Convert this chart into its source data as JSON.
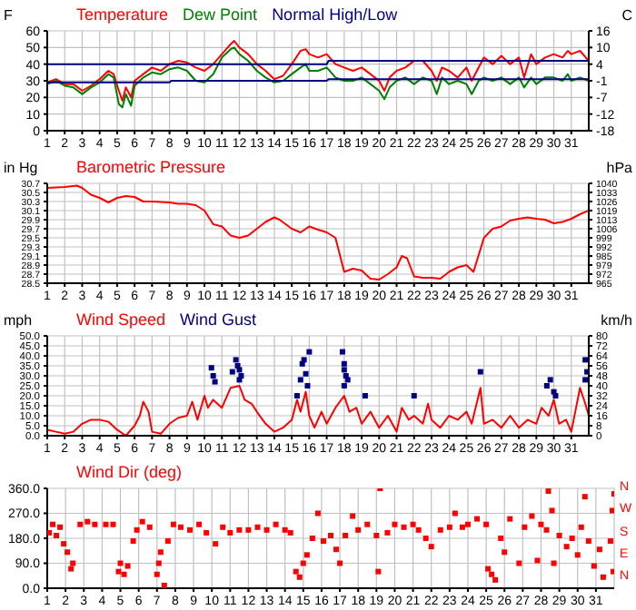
{
  "chart_data": [
    {
      "type": "line",
      "ylabel": "F",
      "y2label": "C",
      "legend": "top left",
      "grid": true,
      "line_style": "solid",
      "xlim": [
        1,
        32
      ],
      "xticks": [
        1,
        2,
        3,
        4,
        5,
        6,
        7,
        8,
        9,
        10,
        11,
        12,
        13,
        14,
        15,
        16,
        17,
        18,
        19,
        20,
        21,
        22,
        23,
        24,
        25,
        26,
        27,
        28,
        29,
        30,
        31
      ],
      "ylim": [
        0,
        60
      ],
      "yticks": [
        0,
        10,
        20,
        30,
        40,
        50,
        60
      ],
      "y2lim": [
        -17.78,
        15.56
      ],
      "y2ticks": [
        {
          "value": -17.78,
          "label": "-18"
        },
        {
          "value": -12.22,
          "label": "-12"
        },
        {
          "value": -6.67,
          "label": "-7"
        },
        {
          "value": -1.11,
          "label": "-1"
        },
        {
          "value": 4.44,
          "label": "4"
        },
        10,
        {
          "value": 15.56,
          "label": "16"
        }
      ],
      "series": [
        {
          "name": "Temperature",
          "color": "#ff0000",
          "x": [
            1,
            1.5,
            2,
            2.5,
            3,
            3.5,
            4,
            4.5,
            4.8,
            5.1,
            5.3,
            5.5,
            5.8,
            6,
            6.5,
            7,
            7.5,
            8,
            8.5,
            9,
            9.5,
            10,
            10.5,
            11,
            11.5,
            11.7,
            12,
            12.5,
            13,
            13.5,
            14,
            14.5,
            15,
            15.5,
            15.8,
            16,
            16.5,
            17,
            17.5,
            18,
            18.5,
            19,
            19.5,
            20,
            20.3,
            20.6,
            21,
            21.5,
            22,
            22.5,
            23,
            23.3,
            23.6,
            24,
            24.5,
            25,
            25.3,
            25.7,
            26,
            26.5,
            27,
            27.5,
            28,
            28.3,
            28.7,
            29,
            29.5,
            30,
            30.5,
            30.8,
            31,
            31.5,
            32
          ],
          "values": [
            29,
            31,
            28,
            28,
            24,
            27,
            31,
            36,
            34,
            24,
            18,
            26,
            20,
            30,
            34,
            38,
            36,
            40,
            42,
            41,
            38,
            36,
            40,
            46,
            52,
            54,
            50,
            46,
            40,
            36,
            31,
            33,
            40,
            48,
            49,
            46,
            44,
            46,
            40,
            38,
            36,
            38,
            34,
            30,
            24,
            32,
            36,
            38,
            42,
            42,
            36,
            30,
            38,
            36,
            32,
            38,
            30,
            38,
            44,
            40,
            45,
            40,
            44,
            32,
            46,
            40,
            44,
            46,
            44,
            48,
            46,
            48,
            42
          ]
        },
        {
          "name": "Dew Point",
          "color": "#008000",
          "x": [
            1,
            1.5,
            2,
            2.5,
            3,
            3.5,
            4,
            4.5,
            4.8,
            5.1,
            5.3,
            5.5,
            5.8,
            6,
            6.5,
            7,
            7.5,
            8,
            8.5,
            9,
            9.5,
            10,
            10.5,
            11,
            11.5,
            11.7,
            12,
            12.5,
            13,
            13.5,
            14,
            14.5,
            15,
            15.5,
            15.8,
            16,
            16.5,
            17,
            17.5,
            18,
            18.5,
            19,
            19.5,
            20,
            20.3,
            20.6,
            21,
            21.5,
            22,
            22.5,
            23,
            23.3,
            23.6,
            24,
            24.5,
            25,
            25.3,
            25.7,
            26,
            26.5,
            27,
            27.5,
            28,
            28.3,
            28.7,
            29,
            29.5,
            30,
            30.5,
            30.8,
            31,
            31.5,
            32
          ],
          "values": [
            28,
            30,
            27,
            26,
            22,
            26,
            29,
            34,
            32,
            16,
            14,
            22,
            15,
            27,
            32,
            35,
            34,
            37,
            38,
            36,
            30,
            29,
            34,
            44,
            49,
            50,
            46,
            42,
            36,
            32,
            29,
            30,
            34,
            38,
            40,
            36,
            36,
            38,
            32,
            30,
            30,
            32,
            28,
            24,
            19,
            26,
            30,
            32,
            28,
            32,
            30,
            22,
            32,
            28,
            30,
            28,
            22,
            30,
            32,
            30,
            32,
            28,
            32,
            26,
            32,
            28,
            32,
            32,
            30,
            34,
            30,
            32,
            30
          ]
        },
        {
          "name": "Normal High/Low",
          "color": "#000080",
          "x": [
            1,
            17,
            17.1,
            32
          ],
          "values": [
            40,
            40,
            42,
            42
          ]
        },
        {
          "color": "#000080",
          "x": [
            1,
            8,
            8.1,
            17,
            17.1,
            32
          ],
          "values": [
            29,
            29,
            30,
            30,
            31,
            31
          ]
        }
      ]
    },
    {
      "type": "line",
      "ylabel": "in Hg",
      "y2label": "hPa",
      "legend": "top left",
      "grid": true,
      "line_style": "solid",
      "xlim": [
        1,
        32
      ],
      "xticks": [
        1,
        2,
        3,
        4,
        5,
        6,
        7,
        8,
        9,
        10,
        11,
        12,
        13,
        14,
        15,
        16,
        17,
        18,
        19,
        20,
        21,
        22,
        23,
        24,
        25,
        26,
        27,
        28,
        29,
        30,
        31
      ],
      "ylim": [
        28.5,
        30.7
      ],
      "yticks": [
        28.5,
        28.7,
        28.9,
        29.1,
        29.3,
        29.5,
        29.7,
        29.9,
        30.1,
        30.3,
        30.5,
        30.7
      ],
      "y2lim": [
        965.1,
        1039.6
      ],
      "y2ticks": [
        {
          "value": 965.1,
          "label": "965"
        },
        {
          "value": 971.9,
          "label": "972"
        },
        {
          "value": 978.7,
          "label": "979"
        },
        {
          "value": 985.4,
          "label": "985"
        },
        {
          "value": 992.2,
          "label": "992"
        },
        {
          "value": 999,
          "label": "999"
        },
        {
          "value": 1005.8,
          "label": "1006"
        },
        {
          "value": 1012.5,
          "label": "1013"
        },
        {
          "value": 1019.3,
          "label": "1019"
        },
        {
          "value": 1026.1,
          "label": "1026"
        },
        {
          "value": 1032.9,
          "label": "1033"
        },
        {
          "value": 1039.6,
          "label": "1040"
        }
      ],
      "series": [
        {
          "name": "Barometric Pressure",
          "color": "#ff0000",
          "x": [
            1,
            2,
            2.7,
            3,
            3.5,
            4,
            4.5,
            5,
            5.5,
            6,
            6.5,
            7,
            8,
            8.5,
            9,
            9.5,
            10,
            10.5,
            11,
            11.5,
            12,
            12.5,
            13,
            13.5,
            14,
            14.3,
            15,
            15.5,
            16,
            16.5,
            17,
            17.5,
            18,
            18.5,
            19,
            19.5,
            20,
            20.5,
            21,
            21.3,
            21.6,
            22,
            22.5,
            23,
            23.5,
            24,
            24.5,
            25,
            25.4,
            26,
            26.5,
            27,
            27.5,
            28,
            28.5,
            29,
            29.5,
            30,
            30.5,
            31,
            31.5,
            32
          ],
          "values": [
            30.6,
            30.62,
            30.65,
            30.6,
            30.45,
            30.38,
            30.28,
            30.38,
            30.42,
            30.4,
            30.3,
            30.3,
            30.28,
            30.25,
            30.25,
            30.22,
            30.1,
            29.8,
            29.75,
            29.55,
            29.5,
            29.55,
            29.7,
            29.85,
            29.95,
            29.9,
            29.7,
            29.62,
            29.75,
            29.68,
            29.62,
            29.5,
            28.75,
            28.82,
            28.78,
            28.6,
            28.58,
            28.7,
            28.85,
            29.1,
            29.05,
            28.65,
            28.62,
            28.62,
            28.6,
            28.75,
            28.85,
            28.9,
            28.75,
            29.5,
            29.7,
            29.75,
            29.88,
            29.92,
            29.95,
            29.92,
            29.9,
            29.82,
            29.85,
            29.92,
            30.02,
            30.1
          ]
        }
      ]
    },
    {
      "type": "line",
      "ylabel": "mph",
      "y2label": "km/h",
      "legend": "top left",
      "grid": true,
      "line_style": "solid",
      "marker": "square",
      "xlim": [
        1,
        32
      ],
      "xticks": [
        1,
        2,
        3,
        4,
        5,
        6,
        7,
        8,
        9,
        10,
        11,
        12,
        13,
        14,
        15,
        16,
        17,
        18,
        19,
        20,
        21,
        22,
        23,
        24,
        25,
        26,
        27,
        28,
        29,
        30,
        31
      ],
      "ylim": [
        0,
        50
      ],
      "yticks": [
        {
          "value": 0,
          "label": "0.0"
        },
        {
          "value": 5,
          "label": "5.0"
        },
        {
          "value": 10,
          "label": "10.0"
        },
        {
          "value": 15,
          "label": "15.0"
        },
        {
          "value": 20,
          "label": "20.0"
        },
        {
          "value": 25,
          "label": "25.0"
        },
        {
          "value": 30,
          "label": "30.0"
        },
        {
          "value": 35,
          "label": "35.0"
        },
        {
          "value": 40,
          "label": "40.0"
        },
        {
          "value": 45,
          "label": "45.0"
        },
        {
          "value": 50,
          "label": "50.0"
        }
      ],
      "y2lim": [
        0,
        80.47
      ],
      "y2ticks": [
        0,
        {
          "value": 8.05,
          "label": "8"
        },
        {
          "value": 16.09,
          "label": "16"
        },
        {
          "value": 24.14,
          "label": "24"
        },
        {
          "value": 32.19,
          "label": "32"
        },
        {
          "value": 40.23,
          "label": "40"
        },
        {
          "value": 48.28,
          "label": "48"
        },
        {
          "value": 56.33,
          "label": "56"
        },
        {
          "value": 64.37,
          "label": "64"
        },
        {
          "value": 72.42,
          "label": "72"
        },
        {
          "value": 80.47,
          "label": "80"
        }
      ],
      "series": [
        {
          "name": "Wind Speed",
          "marker": "none",
          "color": "#ff0000",
          "x": [
            1,
            1.5,
            2,
            2.5,
            3,
            3.5,
            4,
            4.5,
            5,
            5.5,
            6,
            6.3,
            6.5,
            6.8,
            7,
            7.5,
            8,
            8.5,
            9,
            9.3,
            9.6,
            10,
            10.2,
            10.5,
            11,
            11.5,
            12,
            12.3,
            12.7,
            13,
            13.5,
            14,
            14.5,
            15,
            15.3,
            15.5,
            15.8,
            16,
            16.3,
            16.7,
            17,
            17.5,
            18,
            18.3,
            18.7,
            19,
            19.5,
            20,
            20.5,
            21,
            21.3,
            21.7,
            22,
            22.5,
            22.8,
            23,
            23.5,
            24,
            24.5,
            25,
            25.3,
            25.8,
            26,
            26.5,
            27,
            27.5,
            28,
            28.5,
            29,
            29.3,
            29.7,
            30,
            30.3,
            30.7,
            31,
            31.5,
            31.8,
            32
          ],
          "values": [
            3,
            2,
            1,
            2,
            6,
            8,
            8,
            7,
            3,
            0,
            5,
            10,
            17,
            12,
            2,
            1,
            6,
            9,
            10,
            17,
            8,
            20,
            14,
            18,
            14,
            24,
            25,
            18,
            16,
            12,
            6,
            2,
            4,
            8,
            18,
            12,
            22,
            10,
            4,
            12,
            6,
            14,
            20,
            12,
            14,
            6,
            12,
            4,
            10,
            2,
            14,
            8,
            10,
            6,
            16,
            8,
            4,
            10,
            8,
            12,
            6,
            24,
            6,
            8,
            4,
            10,
            4,
            8,
            6,
            14,
            10,
            18,
            6,
            8,
            2,
            24,
            16,
            10
          ]
        },
        {
          "name": "Wind Gust",
          "type": "scatter",
          "color": "#000080",
          "x": [
            10.4,
            10.5,
            10.6,
            11.6,
            11.8,
            11.9,
            12,
            12.1,
            12,
            15.3,
            15.5,
            15.6,
            15.7,
            15.8,
            15.9,
            16,
            17.9,
            18,
            18,
            18.1,
            18.2,
            18,
            19.2,
            22,
            25.8,
            29.6,
            29.8,
            30,
            30.1,
            31.8,
            31.9,
            31.8
          ],
          "values": [
            34,
            30,
            27,
            32,
            38,
            35,
            33,
            30,
            28,
            20,
            28,
            36,
            38,
            31,
            25,
            42,
            42,
            36,
            33,
            30,
            28,
            25,
            20,
            20,
            32,
            25,
            28,
            22,
            20,
            38,
            32,
            28
          ]
        }
      ]
    },
    {
      "type": "scatter",
      "legend": "top left",
      "grid": true,
      "marker": "square",
      "xlim": [
        1,
        32
      ],
      "xticks": [
        1,
        2,
        3,
        4,
        5,
        6,
        7,
        8,
        9,
        10,
        11,
        12,
        13,
        14,
        15,
        16,
        17,
        18,
        19,
        20,
        21,
        22,
        23,
        24,
        25,
        26,
        27,
        28,
        29,
        30,
        31
      ],
      "ylim": [
        0,
        360
      ],
      "yticks": [
        {
          "value": 0,
          "label": "0.0"
        },
        {
          "value": 90,
          "label": "90.0"
        },
        {
          "value": 180,
          "label": "180.0"
        },
        {
          "value": 270,
          "label": "270.0"
        },
        {
          "value": 360,
          "label": "360.0"
        }
      ],
      "annotations": [
        "N",
        "W",
        "S",
        "E",
        "N"
      ],
      "series": [
        {
          "name": "Wind Dir (deg)",
          "color": "#ff0000",
          "x": [
            1.1,
            1.3,
            1.5,
            1.7,
            1.9,
            2.1,
            2.3,
            2.4,
            2.8,
            3.2,
            3.6,
            4.2,
            4.6,
            4.9,
            5,
            5.2,
            5.4,
            5.7,
            5.9,
            6.2,
            6.6,
            7,
            7.1,
            7.2,
            7.4,
            7.6,
            7.9,
            8.3,
            8.8,
            9.3,
            9.7,
            10.2,
            10.6,
            11,
            11.5,
            12,
            12.5,
            13,
            13.5,
            14,
            14.3,
            14.6,
            14.8,
            15,
            15.2,
            15.5,
            15.8,
            16.1,
            16.5,
            16.8,
            17,
            17.3,
            17.7,
            18,
            18.5,
            19,
            19.1,
            19.2,
            19.6,
            20,
            20.5,
            21,
            21.3,
            21.7,
            22,
            22.5,
            23,
            23.3,
            23.7,
            24,
            24.5,
            25,
            25.1,
            25.3,
            25.5,
            25.8,
            26,
            26.3,
            26.8,
            27.1,
            27.5,
            27.8,
            28,
            28.3,
            28.4,
            28.6,
            28.7,
            29,
            29.4,
            29.7,
            30,
            30.2,
            30.4,
            30.6,
            30.9,
            31.2,
            31.4,
            31.8,
            31.9,
            32,
            31.95
          ],
          "values": [
            200,
            230,
            190,
            220,
            160,
            130,
            70,
            90,
            230,
            240,
            230,
            230,
            230,
            60,
            90,
            50,
            80,
            170,
            210,
            240,
            220,
            50,
            90,
            130,
            10,
            170,
            230,
            220,
            210,
            230,
            200,
            160,
            220,
            200,
            210,
            210,
            220,
            210,
            230,
            210,
            200,
            60,
            40,
            90,
            120,
            180,
            270,
            170,
            190,
            140,
            90,
            190,
            260,
            210,
            230,
            190,
            60,
            360,
            200,
            230,
            220,
            230,
            210,
            180,
            150,
            210,
            220,
            270,
            220,
            230,
            250,
            230,
            70,
            50,
            30,
            180,
            130,
            250,
            90,
            220,
            260,
            100,
            230,
            210,
            350,
            280,
            90,
            190,
            150,
            180,
            120,
            220,
            330,
            170,
            80,
            140,
            40,
            170,
            280,
            340,
            60
          ]
        }
      ]
    }
  ]
}
